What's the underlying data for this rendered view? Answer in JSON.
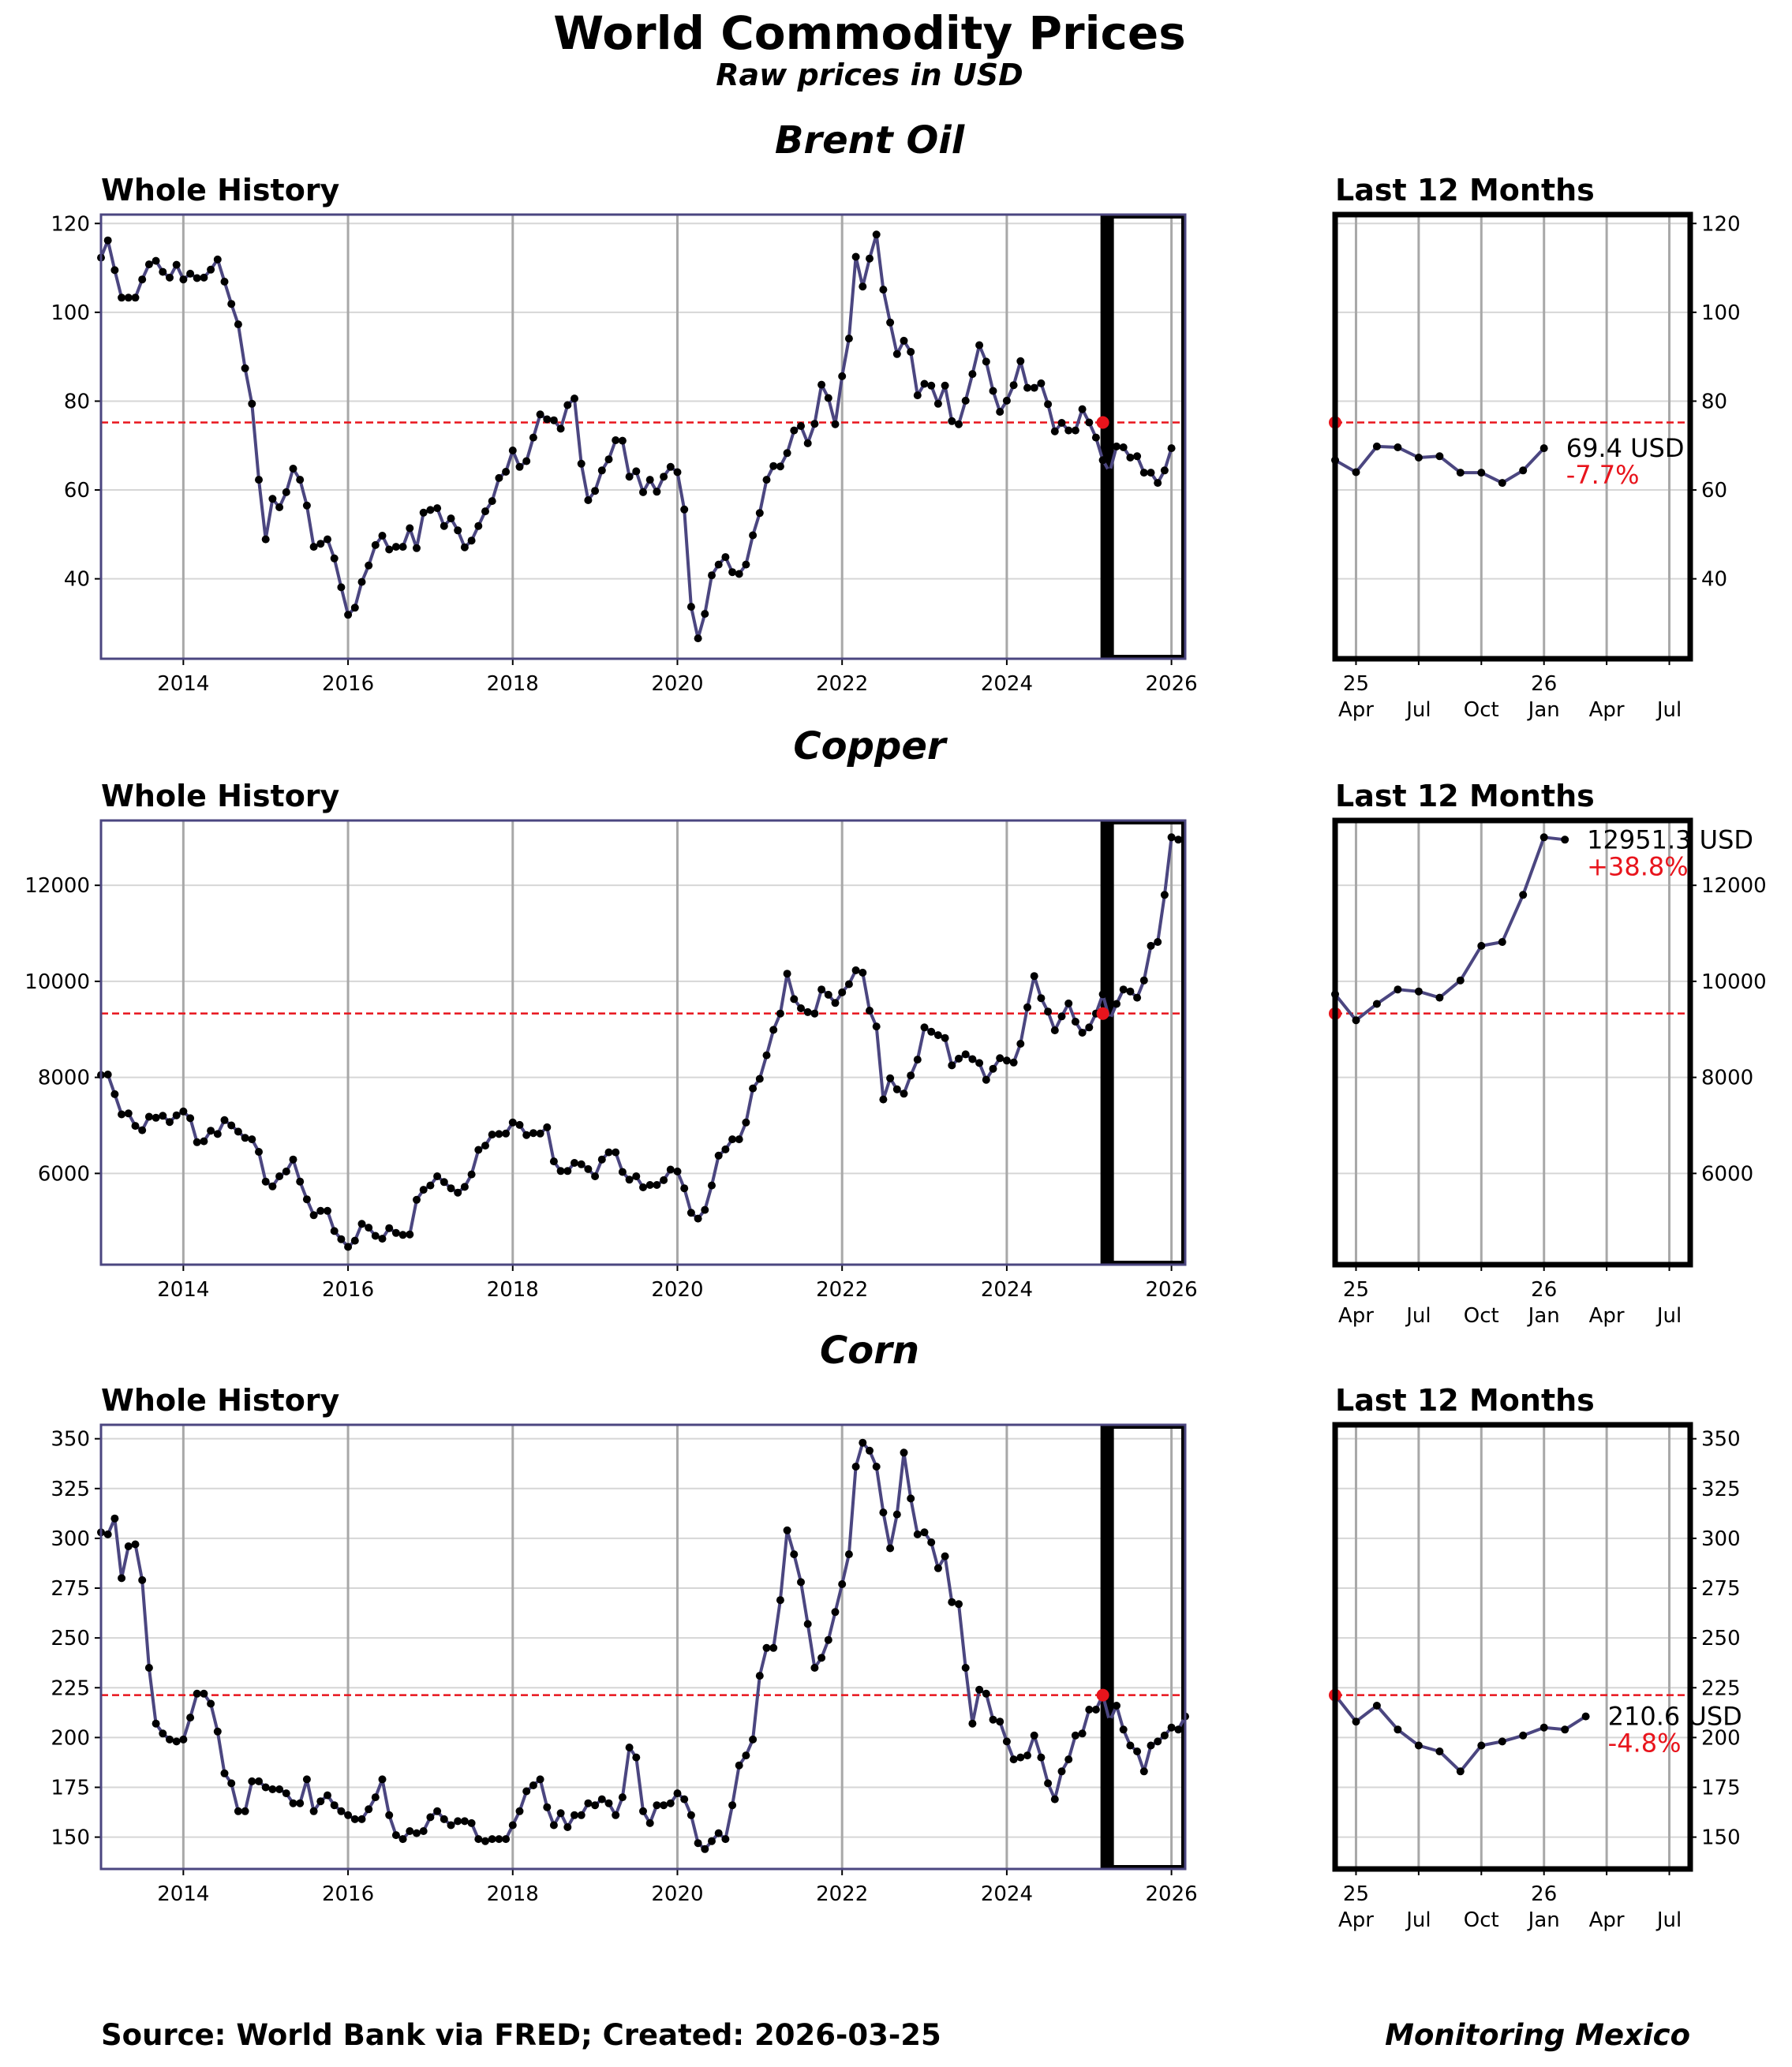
{
  "title": "World Commodity Prices",
  "subtitle": "Raw prices in USD",
  "footer": {
    "source": "Source: World Bank via FRED; Created: 2026-03-25",
    "brand": "Monitoring Mexico"
  },
  "panel_labels": {
    "whole": "Whole History",
    "recent": "Last 12 Months"
  },
  "colors": {
    "line": "#4b4680",
    "marker": "#000000",
    "reference": "#e8141c",
    "change": "#e8141c",
    "window": "#000000"
  },
  "chart_data": [
    {
      "type": "line",
      "name": "Brent Oil",
      "unit": "USD",
      "x_start": "2013-01",
      "xlim": [
        "2013-01",
        "2026-03"
      ],
      "ylim": [
        22,
        122
      ],
      "yticks": [
        40,
        60,
        80,
        100,
        120
      ],
      "xticks": [
        "2014",
        "2016",
        "2018",
        "2020",
        "2022",
        "2024",
        "2026"
      ],
      "recent_xticks": [
        "25\nApr",
        "Jul",
        "Oct",
        "26\nJan",
        "Apr",
        "Jul"
      ],
      "reference_month": "2025-03",
      "reference_value": 75.2,
      "last_value_label": "69.4 USD",
      "change_label": "-7.7%",
      "values": [
        112.3,
        116.2,
        109.5,
        103.3,
        103.3,
        103.3,
        107.4,
        110.8,
        111.6,
        109.1,
        107.8,
        110.7,
        107.4,
        108.7,
        107.7,
        107.8,
        109.6,
        111.9,
        106.9,
        101.9,
        97.3,
        87.4,
        79.4,
        62.3,
        48.9,
        58.0,
        56.1,
        59.5,
        64.8,
        62.3,
        56.5,
        47.2,
        47.9,
        48.9,
        44.6,
        38.1,
        31.9,
        33.5,
        39.3,
        43.0,
        47.6,
        49.7,
        46.6,
        47.2,
        47.2,
        51.4,
        46.9,
        54.9,
        55.5,
        55.9,
        51.9,
        53.6,
        50.9,
        47.1,
        48.6,
        51.9,
        55.2,
        57.5,
        62.7,
        64.1,
        68.9,
        65.2,
        66.5,
        71.8,
        77.0,
        75.9,
        75.7,
        73.8,
        79.1,
        80.6,
        65.9,
        57.7,
        59.8,
        64.4,
        66.9,
        71.2,
        71.1,
        63.0,
        64.2,
        59.5,
        62.3,
        59.6,
        63.0,
        65.2,
        64.0,
        55.6,
        33.7,
        26.6,
        32.1,
        40.8,
        43.2,
        44.9,
        41.5,
        41.1,
        43.2,
        49.8,
        54.8,
        62.3,
        65.4,
        65.3,
        68.3,
        73.4,
        74.4,
        70.5,
        74.9,
        83.7,
        80.7,
        74.8,
        85.6,
        94.1,
        112.5,
        105.8,
        112.1,
        117.5,
        105.1,
        97.7,
        90.6,
        93.6,
        91.1,
        81.3,
        83.9,
        83.5,
        79.4,
        83.5,
        75.5,
        74.8,
        80.1,
        86.1,
        92.6,
        88.9,
        82.3,
        77.6,
        80.1,
        83.6,
        89.0,
        83.0,
        83.0,
        84.0,
        79.3,
        73.2,
        75.1,
        73.4,
        73.4,
        78.2,
        75.2,
        71.8,
        66.7,
        64.0,
        69.8,
        69.6,
        67.3,
        67.6,
        63.9,
        63.9,
        61.6,
        64.4,
        69.4
      ]
    },
    {
      "type": "line",
      "name": "Copper",
      "unit": "USD",
      "x_start": "2013-01",
      "xlim": [
        "2013-01",
        "2026-03"
      ],
      "ylim": [
        4100,
        13350
      ],
      "yticks": [
        6000,
        8000,
        10000,
        12000
      ],
      "xticks": [
        "2014",
        "2016",
        "2018",
        "2020",
        "2022",
        "2024",
        "2026"
      ],
      "recent_xticks": [
        "25\nApr",
        "Jul",
        "Oct",
        "26\nJan",
        "Apr",
        "Jul"
      ],
      "reference_month": "2025-03",
      "reference_value": 9330,
      "last_value_label": "12951.3 USD",
      "change_label": "+38.8%",
      "values": [
        8050,
        8060,
        7650,
        7230,
        7250,
        6990,
        6900,
        7180,
        7160,
        7200,
        7070,
        7210,
        7290,
        7150,
        6650,
        6670,
        6890,
        6820,
        7110,
        7000,
        6870,
        6740,
        6710,
        6450,
        5830,
        5730,
        5940,
        6040,
        6290,
        5830,
        5460,
        5130,
        5220,
        5220,
        4800,
        4630,
        4470,
        4600,
        4950,
        4870,
        4700,
        4640,
        4860,
        4760,
        4720,
        4730,
        5450,
        5660,
        5750,
        5940,
        5820,
        5690,
        5600,
        5720,
        5980,
        6490,
        6580,
        6810,
        6820,
        6830,
        7060,
        7010,
        6800,
        6840,
        6830,
        6960,
        6250,
        6050,
        6050,
        6220,
        6190,
        6090,
        5940,
        6290,
        6440,
        6440,
        6030,
        5870,
        5940,
        5710,
        5760,
        5760,
        5860,
        6080,
        6040,
        5690,
        5180,
        5060,
        5240,
        5750,
        6370,
        6500,
        6710,
        6710,
        7060,
        7770,
        7970,
        8460,
        8990,
        9330,
        10160,
        9630,
        9440,
        9360,
        9330,
        9830,
        9720,
        9550,
        9770,
        9940,
        10230,
        10180,
        9390,
        9060,
        7540,
        7980,
        7750,
        7660,
        8040,
        8370,
        9040,
        8950,
        8880,
        8820,
        8250,
        8390,
        8480,
        8380,
        8300,
        7950,
        8180,
        8400,
        8350,
        8310,
        8700,
        9460,
        10110,
        9650,
        9370,
        8980,
        9270,
        9540,
        9160,
        8930,
        9040,
        9330,
        9730,
        9190,
        9530,
        9830,
        9790,
        9660,
        10020,
        10740,
        10820,
        11800,
        13000,
        12951.3
      ]
    },
    {
      "type": "line",
      "name": "Corn",
      "unit": "USD",
      "x_start": "2013-01",
      "xlim": [
        "2013-01",
        "2026-03"
      ],
      "ylim": [
        134,
        357
      ],
      "yticks": [
        150,
        175,
        200,
        225,
        250,
        275,
        300,
        325,
        350
      ],
      "xticks": [
        "2014",
        "2016",
        "2018",
        "2020",
        "2022",
        "2024",
        "2026"
      ],
      "recent_xticks": [
        "25\nApr",
        "Jul",
        "Oct",
        "26\nJan",
        "Apr",
        "Jul"
      ],
      "reference_month": "2025-03",
      "reference_value": 221.3,
      "last_value_label": "210.6 USD",
      "change_label": "-4.8%",
      "values": [
        303,
        302,
        310,
        280,
        296,
        297,
        279,
        235,
        207,
        202,
        199,
        198,
        199,
        210,
        222,
        222,
        217,
        203,
        182,
        177,
        163,
        163,
        178,
        178,
        175,
        174,
        174,
        172,
        167,
        167,
        179,
        163,
        168,
        171,
        166,
        163,
        161,
        159,
        159,
        164,
        170,
        179,
        161,
        151,
        149,
        153,
        152,
        153,
        160,
        163,
        159,
        156,
        158,
        158,
        157,
        149,
        148,
        149,
        149,
        149,
        156,
        163,
        173,
        176,
        179,
        165,
        156,
        162,
        155,
        161,
        161,
        167,
        166,
        169,
        167,
        161,
        170,
        195,
        190,
        163,
        157,
        166,
        166,
        167,
        172,
        169,
        161,
        147,
        144,
        148,
        152,
        149,
        166,
        186,
        191,
        199,
        231,
        245,
        245,
        269,
        304,
        292,
        278,
        257,
        235,
        240,
        249,
        263,
        277,
        292,
        336,
        348,
        344,
        336,
        313,
        295,
        312,
        343,
        320,
        302,
        303,
        298,
        285,
        291,
        268,
        267,
        235,
        207,
        224,
        222,
        209,
        208,
        198,
        189,
        190,
        191,
        201,
        190,
        177,
        169,
        183,
        189,
        201,
        202,
        214,
        214,
        221.3,
        208,
        216,
        204,
        196,
        193,
        183,
        196,
        198,
        201,
        205,
        204,
        210.6
      ]
    }
  ]
}
